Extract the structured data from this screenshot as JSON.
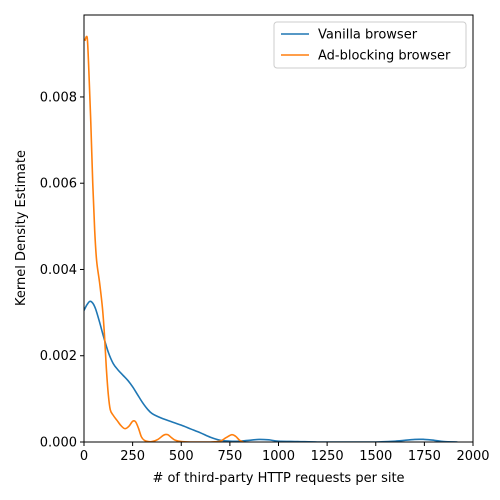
{
  "chart_data": {
    "type": "line",
    "title": "",
    "xlabel": "# of third-party HTTP requests per site",
    "ylabel": "Kernel Density Estimate",
    "xlim": [
      0,
      2000
    ],
    "ylim": [
      0,
      0.0099
    ],
    "x_ticks": [
      "0",
      "250",
      "500",
      "750",
      "1000",
      "1250",
      "1500",
      "1750",
      "2000"
    ],
    "x_tick_values": [
      0,
      250,
      500,
      750,
      1000,
      1250,
      1500,
      1750,
      2000
    ],
    "y_ticks": [
      "0.000",
      "0.002",
      "0.004",
      "0.006",
      "0.008"
    ],
    "y_tick_values": [
      0,
      0.002,
      0.004,
      0.006,
      0.008
    ],
    "grid": false,
    "legend_position": "top-right",
    "series": [
      {
        "name": "Vanilla browser",
        "color": "#1f77b4",
        "points": [
          [
            0,
            0.00305
          ],
          [
            15,
            0.00318
          ],
          [
            30,
            0.00326
          ],
          [
            45,
            0.00322
          ],
          [
            60,
            0.00308
          ],
          [
            80,
            0.00278
          ],
          [
            100,
            0.00245
          ],
          [
            125,
            0.00208
          ],
          [
            150,
            0.00182
          ],
          [
            175,
            0.00167
          ],
          [
            200,
            0.00155
          ],
          [
            225,
            0.00143
          ],
          [
            250,
            0.00128
          ],
          [
            275,
            0.0011
          ],
          [
            300,
            0.00092
          ],
          [
            325,
            0.00077
          ],
          [
            350,
            0.00066
          ],
          [
            400,
            0.00055
          ],
          [
            450,
            0.00047
          ],
          [
            500,
            0.00039
          ],
          [
            550,
            0.0003
          ],
          [
            600,
            0.00021
          ],
          [
            650,
            0.00011
          ],
          [
            700,
            4e-05
          ],
          [
            750,
            2e-05
          ],
          [
            800,
            2e-05
          ],
          [
            850,
            4e-05
          ],
          [
            900,
            6e-05
          ],
          [
            950,
            5e-05
          ],
          [
            1000,
            2e-05
          ],
          [
            1100,
            1e-05
          ],
          [
            1200,
            0.0
          ],
          [
            1300,
            0.0
          ],
          [
            1400,
            0.0
          ],
          [
            1500,
            0.0
          ],
          [
            1600,
            2e-05
          ],
          [
            1700,
            6e-05
          ],
          [
            1750,
            6e-05
          ],
          [
            1800,
            4e-05
          ],
          [
            1850,
            1e-05
          ],
          [
            1920,
            0.0
          ]
        ]
      },
      {
        "name": "Ad-blocking browser",
        "color": "#ff7f0e",
        "points": [
          [
            5,
            0.0093
          ],
          [
            12,
            0.0094
          ],
          [
            18,
            0.0093
          ],
          [
            25,
            0.0086
          ],
          [
            35,
            0.0074
          ],
          [
            45,
            0.006
          ],
          [
            55,
            0.0049
          ],
          [
            65,
            0.0042
          ],
          [
            80,
            0.0037
          ],
          [
            95,
            0.0031
          ],
          [
            105,
            0.0025
          ],
          [
            115,
            0.0017
          ],
          [
            125,
            0.0011
          ],
          [
            135,
            0.00075
          ],
          [
            150,
            0.00062
          ],
          [
            170,
            0.0005
          ],
          [
            190,
            0.00038
          ],
          [
            210,
            0.00031
          ],
          [
            230,
            0.00036
          ],
          [
            250,
            0.00048
          ],
          [
            265,
            0.00047
          ],
          [
            280,
            0.00032
          ],
          [
            295,
            0.00012
          ],
          [
            310,
            4e-05
          ],
          [
            330,
            1e-05
          ],
          [
            350,
            1e-05
          ],
          [
            380,
            6e-05
          ],
          [
            410,
            0.00016
          ],
          [
            430,
            0.00017
          ],
          [
            450,
            0.0001
          ],
          [
            470,
            4e-05
          ],
          [
            500,
            1e-05
          ],
          [
            550,
            0.0
          ],
          [
            600,
            0.0
          ],
          [
            650,
            0.0
          ],
          [
            700,
            2e-05
          ],
          [
            730,
            0.0001
          ],
          [
            760,
            0.00017
          ],
          [
            780,
            0.00013
          ],
          [
            800,
            4e-05
          ],
          [
            820,
            0.0
          ]
        ]
      }
    ]
  }
}
